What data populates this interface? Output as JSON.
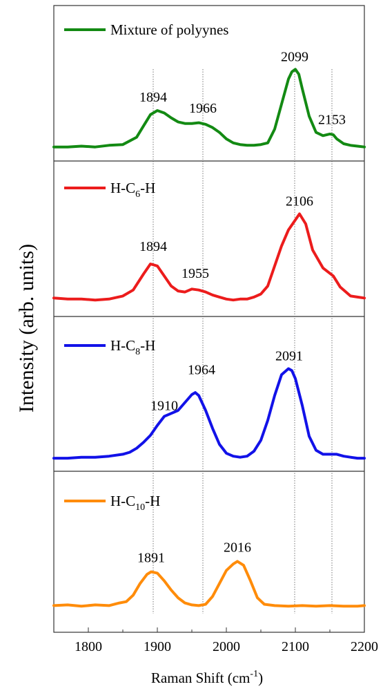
{
  "chart_data": {
    "type": "line",
    "ylabel": "Intensity (arb. units)",
    "xlabel_main": "Raman Shift (cm",
    "xlabel_sup": "-1",
    "xlabel_end": ")",
    "xlim": [
      1750,
      2200
    ],
    "xticks": [
      1800,
      1900,
      2000,
      2100,
      2200
    ],
    "grid": false,
    "reference_lines": [
      1894,
      1966,
      2099,
      2153
    ],
    "panels": [
      {
        "legend": {
          "prefix": "Mixture of polyynes",
          "sub": "",
          "suffix": ""
        },
        "color": "#138a13",
        "ylim": [
          0,
          1
        ],
        "peaks": [
          {
            "x": 1894,
            "label": "1894",
            "y": 0.48
          },
          {
            "x": 1966,
            "label": "1966",
            "y": 0.34
          },
          {
            "x": 2099,
            "label": "2099",
            "y": 0.98
          },
          {
            "x": 2153,
            "label": "2153",
            "y": 0.2
          }
        ],
        "x": [
          1750,
          1770,
          1790,
          1810,
          1830,
          1850,
          1870,
          1880,
          1890,
          1900,
          1910,
          1920,
          1930,
          1940,
          1950,
          1960,
          1970,
          1980,
          1990,
          2000,
          2010,
          2020,
          2030,
          2040,
          2050,
          2060,
          2070,
          2080,
          2090,
          2095,
          2100,
          2105,
          2110,
          2120,
          2130,
          2140,
          2150,
          2155,
          2160,
          2170,
          2180,
          2190,
          2200
        ],
        "y": [
          0.02,
          0.02,
          0.03,
          0.02,
          0.04,
          0.05,
          0.14,
          0.28,
          0.42,
          0.47,
          0.44,
          0.38,
          0.33,
          0.31,
          0.31,
          0.32,
          0.3,
          0.26,
          0.2,
          0.12,
          0.07,
          0.05,
          0.04,
          0.04,
          0.05,
          0.07,
          0.24,
          0.55,
          0.86,
          0.95,
          0.98,
          0.92,
          0.74,
          0.4,
          0.2,
          0.16,
          0.18,
          0.17,
          0.12,
          0.06,
          0.04,
          0.03,
          0.02
        ]
      },
      {
        "legend": {
          "prefix": "H-C",
          "sub": "6",
          "suffix": "-H"
        },
        "color": "#ec1c1c",
        "ylim": [
          0,
          1
        ],
        "peaks": [
          {
            "x": 1894,
            "label": "1894",
            "y": 0.45
          },
          {
            "x": 1955,
            "label": "1955",
            "y": 0.18
          },
          {
            "x": 2106,
            "label": "2106",
            "y": 0.9
          }
        ],
        "x": [
          1750,
          1770,
          1790,
          1810,
          1830,
          1850,
          1865,
          1880,
          1890,
          1900,
          1910,
          1920,
          1930,
          1940,
          1950,
          1960,
          1970,
          1980,
          1990,
          2000,
          2010,
          2020,
          2030,
          2040,
          2050,
          2060,
          2070,
          2080,
          2090,
          2100,
          2106,
          2115,
          2125,
          2140,
          2155,
          2165,
          2180,
          2190,
          2200
        ],
        "y": [
          0.06,
          0.05,
          0.05,
          0.04,
          0.05,
          0.08,
          0.14,
          0.3,
          0.4,
          0.38,
          0.28,
          0.18,
          0.13,
          0.12,
          0.15,
          0.14,
          0.12,
          0.09,
          0.07,
          0.05,
          0.04,
          0.05,
          0.05,
          0.07,
          0.1,
          0.18,
          0.38,
          0.58,
          0.74,
          0.84,
          0.9,
          0.8,
          0.54,
          0.36,
          0.28,
          0.17,
          0.08,
          0.07,
          0.06
        ]
      },
      {
        "legend": {
          "prefix": "H-C",
          "sub": "8",
          "suffix": "-H"
        },
        "color": "#1212e8",
        "ylim": [
          0,
          1
        ],
        "peaks": [
          {
            "x": 1910,
            "label": "1910",
            "y": 0.42
          },
          {
            "x": 1964,
            "label": "1964",
            "y": 0.78
          },
          {
            "x": 2091,
            "label": "2091",
            "y": 0.92
          }
        ],
        "x": [
          1750,
          1770,
          1790,
          1810,
          1830,
          1850,
          1860,
          1870,
          1880,
          1890,
          1900,
          1910,
          1920,
          1930,
          1940,
          1950,
          1955,
          1960,
          1970,
          1980,
          1990,
          2000,
          2010,
          2020,
          2030,
          2040,
          2050,
          2060,
          2070,
          2080,
          2090,
          2095,
          2100,
          2110,
          2120,
          2130,
          2140,
          2150,
          2160,
          2170,
          2180,
          2190,
          2200
        ],
        "y": [
          0.02,
          0.02,
          0.03,
          0.03,
          0.04,
          0.06,
          0.08,
          0.12,
          0.18,
          0.25,
          0.35,
          0.44,
          0.47,
          0.5,
          0.58,
          0.66,
          0.68,
          0.65,
          0.5,
          0.32,
          0.16,
          0.07,
          0.04,
          0.03,
          0.04,
          0.09,
          0.2,
          0.4,
          0.65,
          0.86,
          0.92,
          0.9,
          0.82,
          0.55,
          0.24,
          0.1,
          0.06,
          0.06,
          0.06,
          0.04,
          0.03,
          0.02,
          0.02
        ]
      },
      {
        "legend": {
          "prefix": "H-C",
          "sub": "10",
          "suffix": "-H"
        },
        "color": "#ff8c0a",
        "ylim": [
          0,
          1
        ],
        "peaks": [
          {
            "x": 1891,
            "label": "1891",
            "y": 0.6
          },
          {
            "x": 2016,
            "label": "2016",
            "y": 0.76
          }
        ],
        "x": [
          1750,
          1770,
          1790,
          1810,
          1830,
          1845,
          1855,
          1865,
          1875,
          1885,
          1891,
          1900,
          1910,
          1920,
          1930,
          1940,
          1950,
          1960,
          1970,
          1980,
          1990,
          2000,
          2010,
          2016,
          2025,
          2035,
          2045,
          2055,
          2070,
          2090,
          2110,
          2130,
          2150,
          2170,
          2190,
          2200
        ],
        "y": [
          0.06,
          0.07,
          0.05,
          0.07,
          0.06,
          0.1,
          0.12,
          0.22,
          0.4,
          0.54,
          0.58,
          0.56,
          0.44,
          0.3,
          0.18,
          0.1,
          0.07,
          0.06,
          0.08,
          0.2,
          0.4,
          0.6,
          0.7,
          0.74,
          0.68,
          0.44,
          0.18,
          0.08,
          0.06,
          0.05,
          0.06,
          0.05,
          0.06,
          0.05,
          0.05,
          0.06
        ]
      }
    ]
  }
}
